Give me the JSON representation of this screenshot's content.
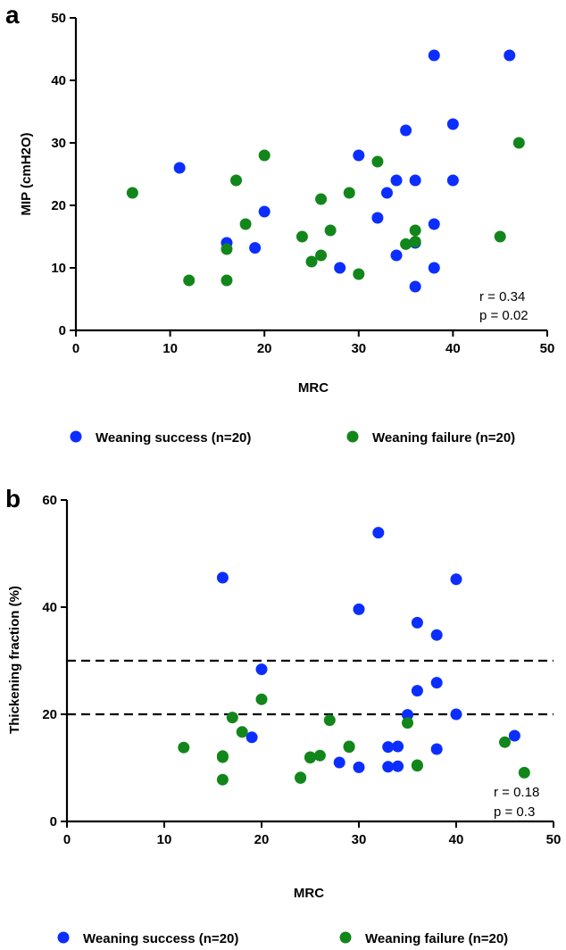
{
  "colors": {
    "success": "#0b2eff",
    "failure": "#12861a",
    "axis": "#000000"
  },
  "chart_data": [
    {
      "type": "scatter",
      "panel": "a",
      "xlabel": "MRC",
      "ylabel": "MIP (cmH2O)",
      "xlim": [
        0,
        50
      ],
      "ylim": [
        0,
        50
      ],
      "xticks": [
        0,
        10,
        20,
        30,
        40,
        50
      ],
      "yticks": [
        0,
        10,
        20,
        30,
        40,
        50
      ],
      "grid": false,
      "annotation": [
        "r = 0.34",
        "p = 0.02"
      ],
      "legend_position": "below",
      "series": [
        {
          "name": "Weaning success (n=20)",
          "color_key": "success",
          "points": [
            [
              11,
              26
            ],
            [
              16,
              14
            ],
            [
              19,
              13.2
            ],
            [
              20,
              19
            ],
            [
              28,
              10
            ],
            [
              30,
              28
            ],
            [
              32,
              18
            ],
            [
              33,
              22
            ],
            [
              34,
              12
            ],
            [
              34,
              24
            ],
            [
              35,
              32
            ],
            [
              36,
              24
            ],
            [
              36,
              14
            ],
            [
              36,
              7
            ],
            [
              38,
              17
            ],
            [
              38,
              10
            ],
            [
              38,
              44
            ],
            [
              40,
              33
            ],
            [
              40,
              24
            ],
            [
              46,
              44
            ]
          ]
        },
        {
          "name": "Weaning failure (n=20)",
          "color_key": "failure",
          "points": [
            [
              6,
              22
            ],
            [
              12,
              8
            ],
            [
              16,
              13
            ],
            [
              16,
              8
            ],
            [
              17,
              24
            ],
            [
              18,
              17
            ],
            [
              20,
              28
            ],
            [
              24,
              15
            ],
            [
              25,
              11
            ],
            [
              26,
              12
            ],
            [
              26,
              21
            ],
            [
              27,
              16
            ],
            [
              29,
              22
            ],
            [
              30,
              9
            ],
            [
              32,
              27
            ],
            [
              35,
              13.8
            ],
            [
              36,
              16
            ],
            [
              45,
              15
            ],
            [
              47,
              30
            ],
            [
              36,
              14.2
            ]
          ]
        }
      ]
    },
    {
      "type": "scatter",
      "panel": "b",
      "xlabel": "MRC",
      "ylabel": "Thickening fraction (%)",
      "xlim": [
        0,
        50
      ],
      "ylim": [
        0,
        60
      ],
      "xticks": [
        0,
        10,
        20,
        30,
        40,
        50
      ],
      "yticks": [
        0,
        20,
        40,
        60
      ],
      "grid": false,
      "reference_lines_y": [
        30,
        20
      ],
      "annotation": [
        "r = 0.18",
        "p = 0.3"
      ],
      "legend_position": "below",
      "series": [
        {
          "name": "Weaning success (n=20)",
          "color_key": "success",
          "points": [
            [
              16,
              45.5
            ],
            [
              19,
              15.7
            ],
            [
              20,
              28.4
            ],
            [
              28,
              11
            ],
            [
              30,
              39.6
            ],
            [
              32,
              53.9
            ],
            [
              33,
              10.2
            ],
            [
              34,
              10.3
            ],
            [
              34,
              14
            ],
            [
              35,
              19.9
            ],
            [
              36,
              37.1
            ],
            [
              36,
              24.4
            ],
            [
              38,
              34.8
            ],
            [
              38,
              25.9
            ],
            [
              38,
              13.5
            ],
            [
              40,
              45.2
            ],
            [
              40,
              20
            ],
            [
              46,
              16
            ],
            [
              30,
              10.1
            ],
            [
              33,
              13.9
            ]
          ]
        },
        {
          "name": "Weaning failure (n=20)",
          "color_key": "failure",
          "points": [
            [
              12,
              13.8
            ],
            [
              16,
              12
            ],
            [
              16,
              7.8
            ],
            [
              17,
              19.4
            ],
            [
              18,
              16.7
            ],
            [
              20,
              22.8
            ],
            [
              24,
              8.2
            ],
            [
              25,
              12
            ],
            [
              26,
              12.3
            ],
            [
              27,
              18.9
            ],
            [
              29,
              14
            ],
            [
              35,
              18.4
            ],
            [
              36,
              10.5
            ],
            [
              45,
              14.8
            ],
            [
              47,
              9.1
            ],
            [
              16,
              12.2
            ],
            [
              24,
              8.1
            ],
            [
              29,
              13.9
            ],
            [
              36,
              10.4
            ],
            [
              25,
              11.9
            ]
          ]
        }
      ]
    }
  ]
}
